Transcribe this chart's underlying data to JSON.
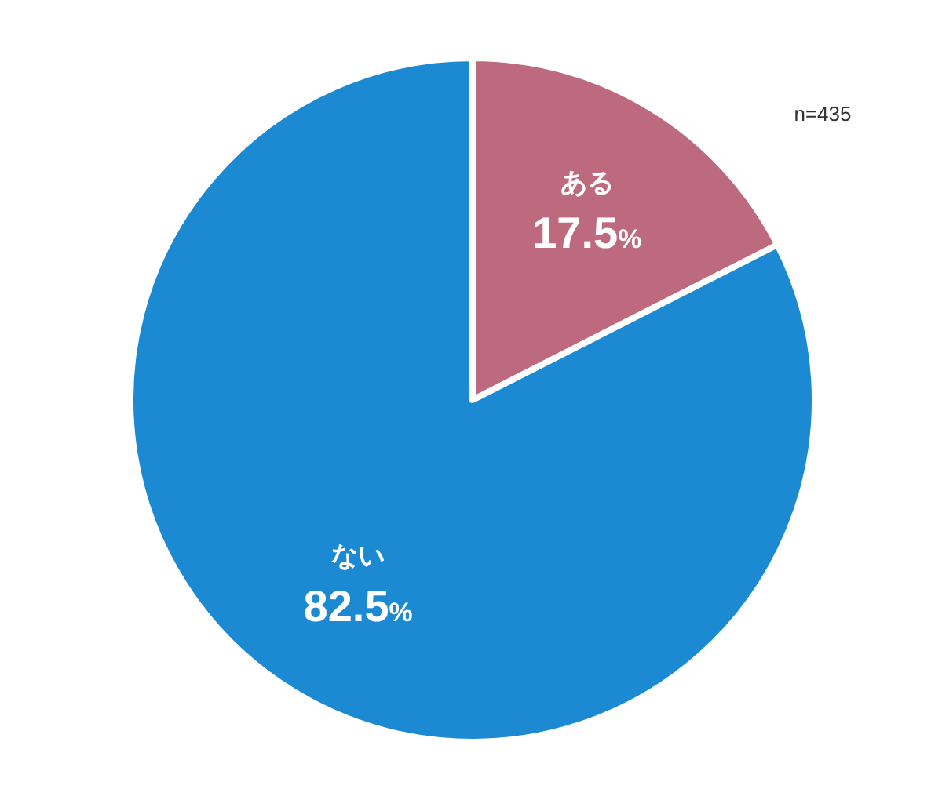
{
  "chart_data": {
    "type": "pie",
    "categories": [
      "ある",
      "ない"
    ],
    "values": [
      17.5,
      82.5
    ],
    "colors": [
      "#be6a7e",
      "#1b8ad3"
    ],
    "value_labels": [
      "17.5%",
      "82.5%"
    ],
    "annotations": [
      "n=435"
    ]
  }
}
